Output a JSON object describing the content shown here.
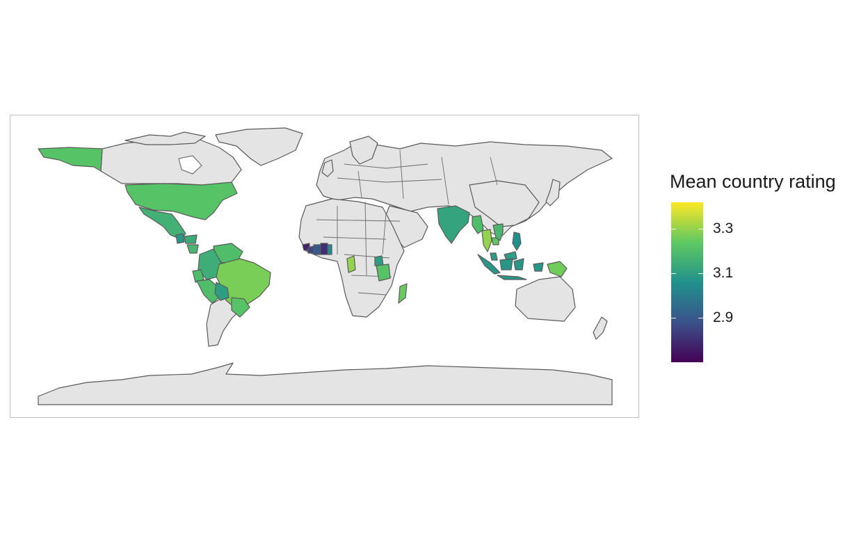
{
  "legend": {
    "title": "Mean country rating",
    "ticks": [
      {
        "value": 3.3,
        "label": "3.3"
      },
      {
        "value": 3.1,
        "label": "3.1"
      },
      {
        "value": 2.9,
        "label": "2.9"
      }
    ],
    "range": [
      2.7,
      3.42
    ]
  },
  "palette": "viridis",
  "colors": {
    "no_data_fill": "#e4e4e4",
    "border": "#595959",
    "panel_border": "#bdbdbd"
  },
  "chart_data": {
    "type": "choropleth",
    "value_label": "Mean country rating",
    "countries": [
      {
        "name": "United States",
        "value": 3.22
      },
      {
        "name": "Mexico",
        "value": 3.16
      },
      {
        "name": "Guatemala",
        "value": 3.08
      },
      {
        "name": "Honduras",
        "value": 3.14
      },
      {
        "name": "Nicaragua",
        "value": 3.18
      },
      {
        "name": "Colombia",
        "value": 3.15
      },
      {
        "name": "Venezuela",
        "value": 3.2
      },
      {
        "name": "Ecuador",
        "value": 3.2
      },
      {
        "name": "Peru",
        "value": 3.2
      },
      {
        "name": "Brazil",
        "value": 3.27
      },
      {
        "name": "Bolivia",
        "value": 3.1
      },
      {
        "name": "Paraguay",
        "value": 3.22
      },
      {
        "name": "Guinea",
        "value": 2.78
      },
      {
        "name": "Sierra Leone",
        "value": 2.85
      },
      {
        "name": "Liberia",
        "value": 2.9
      },
      {
        "name": "Cote d'Ivoire",
        "value": 2.8
      },
      {
        "name": "Ghana",
        "value": 3.05
      },
      {
        "name": "Gabon",
        "value": 3.3
      },
      {
        "name": "Uganda",
        "value": 3.1
      },
      {
        "name": "Tanzania",
        "value": 3.22
      },
      {
        "name": "Madagascar",
        "value": 3.25
      },
      {
        "name": "India",
        "value": 3.12
      },
      {
        "name": "Myanmar",
        "value": 3.2
      },
      {
        "name": "Thailand",
        "value": 3.3
      },
      {
        "name": "Cambodia",
        "value": 3.24
      },
      {
        "name": "Vietnam",
        "value": 3.18
      },
      {
        "name": "Philippines",
        "value": 3.06
      },
      {
        "name": "Malaysia",
        "value": 3.1
      },
      {
        "name": "Indonesia",
        "value": 3.08
      },
      {
        "name": "Papua New Guinea",
        "value": 3.26
      }
    ]
  }
}
